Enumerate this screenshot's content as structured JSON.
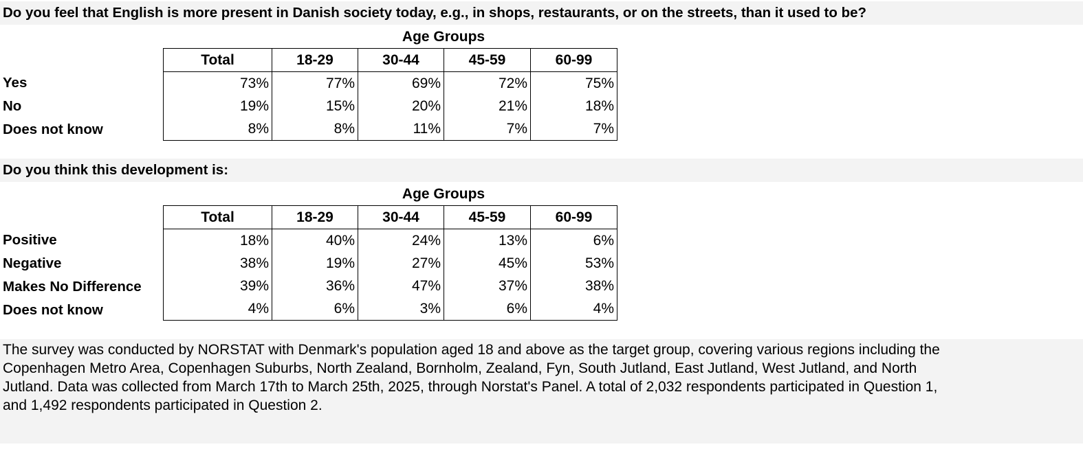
{
  "q1": {
    "question": "Do you feel that English is more present in Danish society today, e.g., in shops, restaurants, or on the streets, than it used to be?",
    "group_label": "Age Groups",
    "columns": [
      "Total",
      "18-29",
      "30-44",
      "45-59",
      "60-99"
    ],
    "rows": [
      {
        "label": "Yes",
        "values": [
          "73%",
          "77%",
          "69%",
          "72%",
          "75%"
        ]
      },
      {
        "label": "No",
        "values": [
          "19%",
          "15%",
          "20%",
          "21%",
          "18%"
        ]
      },
      {
        "label": "Does not know",
        "values": [
          "8%",
          "8%",
          "11%",
          "7%",
          "7%"
        ]
      }
    ]
  },
  "q2": {
    "question": "Do you think this development is:",
    "group_label": "Age Groups",
    "columns": [
      "Total",
      "18-29",
      "30-44",
      "45-59",
      "60-99"
    ],
    "rows": [
      {
        "label": "Positive",
        "values": [
          "18%",
          "40%",
          "24%",
          "13%",
          "6%"
        ]
      },
      {
        "label": "Negative",
        "values": [
          "38%",
          "19%",
          "27%",
          "45%",
          "53%"
        ]
      },
      {
        "label": "Makes No Difference",
        "values": [
          "39%",
          "36%",
          "47%",
          "37%",
          "38%"
        ]
      },
      {
        "label": "Does not know",
        "values": [
          "4%",
          "6%",
          "3%",
          "6%",
          "4%"
        ]
      }
    ]
  },
  "note": "The survey was conducted by NORSTAT with Denmark's population aged 18 and above as the target group, covering various regions including the Copenhagen Metro Area, Copenhagen Suburbs, North Zealand, Bornholm, Zealand, Fyn, South Jutland, East Jutland, West Jutland, and North Jutland. Data was collected from March 17th to March 25th, 2025, through Norstat's Panel. A total of 2,032 respondents participated in Question 1, and 1,492 respondents participated in Question 2."
}
